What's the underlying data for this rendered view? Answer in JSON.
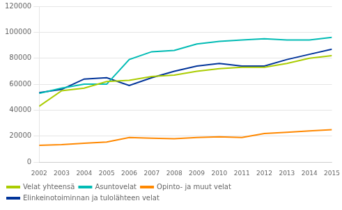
{
  "chart_data": {
    "type": "line",
    "x": [
      2002,
      2003,
      2004,
      2005,
      2006,
      2007,
      2008,
      2009,
      2010,
      2011,
      2012,
      2013,
      2014,
      2015
    ],
    "series": [
      {
        "name": "Velat yhteensä",
        "color": "#aacc00",
        "values": [
          43000,
          55000,
          57000,
          62000,
          63000,
          66000,
          67000,
          70000,
          72000,
          73000,
          73000,
          76000,
          80000,
          82000
        ]
      },
      {
        "name": "Asuntovelat",
        "color": "#00bbb4",
        "values": [
          53000,
          57000,
          60000,
          60000,
          79000,
          85000,
          86000,
          91000,
          93000,
          94000,
          95000,
          94000,
          94000,
          96000
        ]
      },
      {
        "name": "Opinto- ja muut velat",
        "color": "#ff8800",
        "values": [
          13000,
          13500,
          14500,
          15500,
          19000,
          18500,
          18000,
          19000,
          19500,
          19000,
          22000,
          23000,
          24000,
          25000
        ]
      },
      {
        "name": "Elinkeinotoiminnan ja tulolähteen velat",
        "color": "#003399",
        "values": [
          53500,
          56000,
          64000,
          65000,
          59000,
          65000,
          70000,
          74000,
          76000,
          74000,
          74000,
          79000,
          83000,
          87000
        ]
      }
    ],
    "xlim": [
      2002,
      2015
    ],
    "xticks": [
      2002,
      2003,
      2004,
      2005,
      2006,
      2007,
      2008,
      2009,
      2010,
      2011,
      2012,
      2013,
      2014,
      2015
    ],
    "ylim": [
      0,
      120000
    ],
    "yticks": [
      0,
      20000,
      40000,
      60000,
      80000,
      100000,
      120000
    ],
    "grid": "y",
    "legend": "bottom"
  }
}
